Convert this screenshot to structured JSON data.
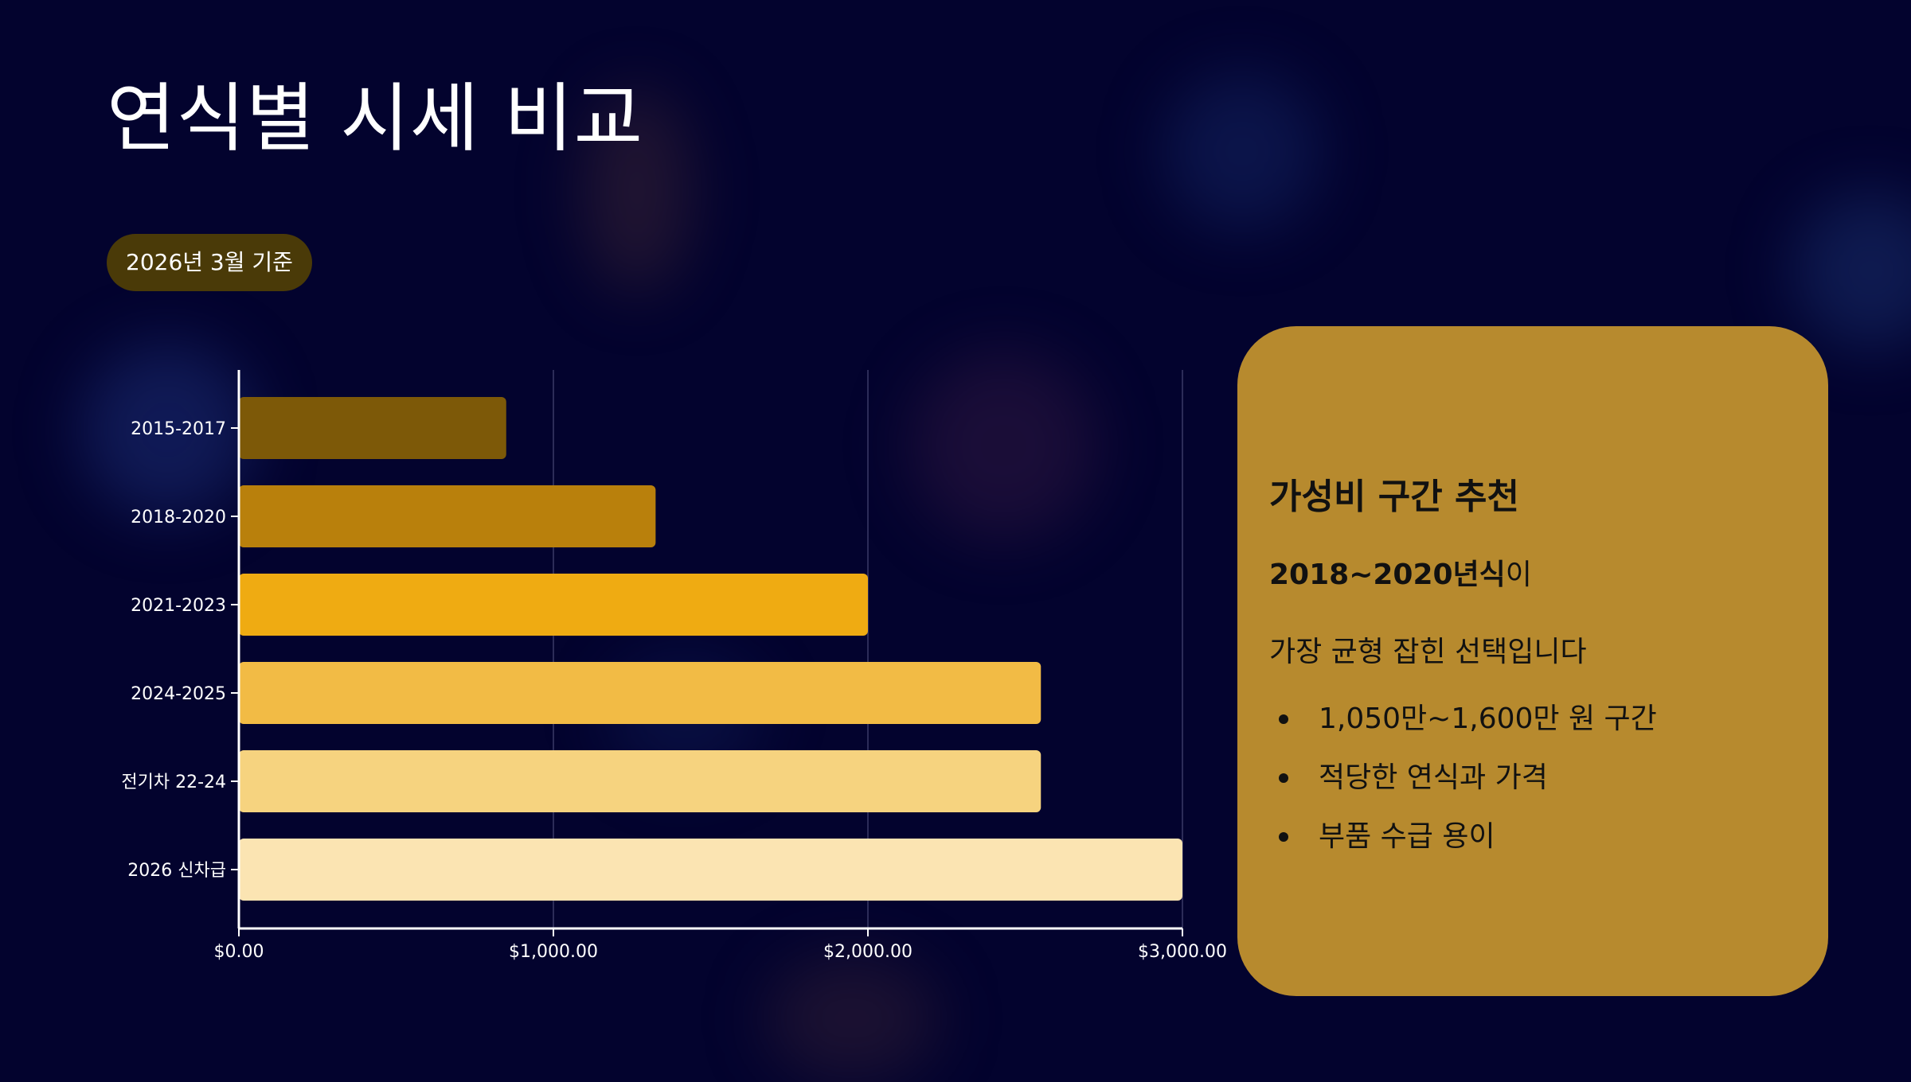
{
  "title": "연식별 시세 비교",
  "badge": "2026년 3월 기준",
  "colors": {
    "background": "#03032e",
    "badge_bg": "#4a3a08",
    "card_bg": "#b78a2e",
    "bar_colors": [
      "#7d5908",
      "#b9800c",
      "#efab12",
      "#f2bb45",
      "#f6d37f",
      "#fbe4b2"
    ]
  },
  "chart_data": {
    "type": "bar",
    "orientation": "horizontal",
    "categories": [
      "2015-2017",
      "2018-2020",
      "2021-2023",
      "2024-2025",
      "전기차 22-24",
      "2026 신차급"
    ],
    "values": [
      850,
      1325,
      2000,
      2550,
      2550,
      3000
    ],
    "x_ticks": [
      "$0.00",
      "$1,000.00",
      "$2,000.00",
      "$3,000.00"
    ],
    "xlim": [
      0,
      3000
    ],
    "grid": true,
    "legend": false
  },
  "card": {
    "title": "가성비 구간 추천",
    "highlight": "2018~2020년식",
    "highlight_suffix": "이",
    "line2": "가장 균형 잡힌 선택입니다",
    "bullets": [
      "1,050만~1,600만 원 구간",
      "적당한 연식과 가격",
      "부품 수급 용이"
    ]
  }
}
